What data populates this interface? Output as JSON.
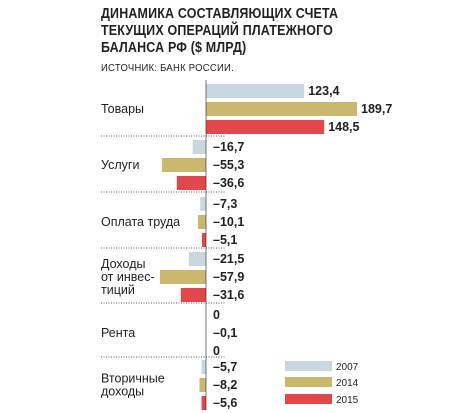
{
  "header": {
    "title_lines": [
      "ДИНАМИКА СОСТАВЛЯЮЩИХ СЧЕТА",
      "ТЕКУЩИХ ОПЕРАЦИЙ ПЛАТЕЖНОГО",
      "БАЛАНСА РФ ($ МЛРД)"
    ],
    "source": "ИСТОЧНИК: БАНК РОССИИ."
  },
  "chart_data": {
    "type": "bar",
    "orientation": "horizontal",
    "title": "ДИНАМИКА СОСТАВЛЯЮЩИХ СЧЕТА ТЕКУЩИХ ОПЕРАЦИЙ ПЛАТЕЖНОГО БАЛАНСА РФ ($ МЛРД)",
    "categories": [
      {
        "label_lines": [
          "Товары"
        ]
      },
      {
        "label_lines": [
          "Услуги"
        ]
      },
      {
        "label_lines": [
          "Оплата труда"
        ]
      },
      {
        "label_lines": [
          "Доходы",
          "от инвес-",
          "тиций"
        ]
      },
      {
        "label_lines": [
          "Рента"
        ]
      },
      {
        "label_lines": [
          "Вторичные",
          "доходы"
        ]
      }
    ],
    "series": [
      {
        "name": "2007",
        "color": "#c9d7e1",
        "values": [
          123.4,
          -16.7,
          -7.3,
          -21.5,
          0,
          -5.7
        ],
        "labels": [
          "123,4",
          "–16,7",
          "–7,3",
          "–21,5",
          "0",
          "–5,7"
        ]
      },
      {
        "name": "2014",
        "color": "#c9b86e",
        "values": [
          189.7,
          -55.3,
          -10.1,
          -57.9,
          -0.1,
          -8.2
        ],
        "labels": [
          "189,7",
          "–55,3",
          "–10,1",
          "–57,9",
          "–0,1",
          "–8,2"
        ]
      },
      {
        "name": "2015",
        "color": "#e2474c",
        "values": [
          148.5,
          -36.6,
          -5.1,
          -31.6,
          0,
          -5.6
        ],
        "labels": [
          "148,5",
          "–36,6",
          "–5,1",
          "–31,6",
          "0",
          "–5,6"
        ]
      }
    ],
    "legend_position": "bottom-right",
    "grid": false
  }
}
